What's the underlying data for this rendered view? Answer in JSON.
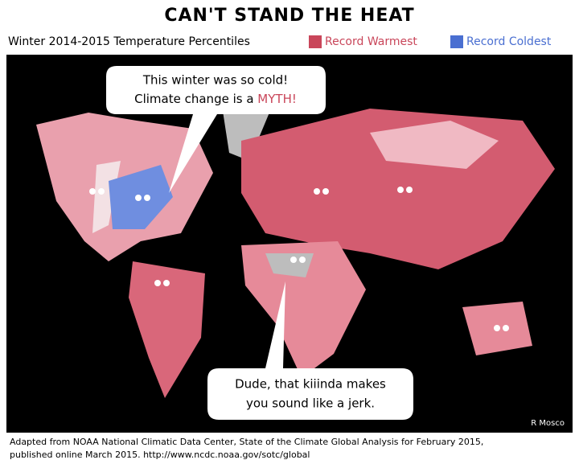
{
  "header": {
    "title": "CAN'T STAND THE HEAT",
    "subtitle": "Winter 2014-2015 Temperature Percentiles"
  },
  "legend": [
    {
      "label": "Record Warmest",
      "color": "#c9465a"
    },
    {
      "label": "Record Coldest",
      "color": "#4a6fd1"
    }
  ],
  "bubbles": [
    {
      "line1": "This winter was so cold!",
      "line2": "Climate change is a ",
      "emphasis": "MYTH!"
    },
    {
      "line1": "Dude, that kiiinda makes",
      "line2": "you sound like a jerk."
    }
  ],
  "credit": "R Mosco",
  "source": {
    "line1": "Adapted from NOAA National Climatic Data Center, State of the Climate Global Analysis for February 2015,",
    "line2": "published online March 2015. http://www.ncdc.noaa.gov/sotc/global"
  }
}
